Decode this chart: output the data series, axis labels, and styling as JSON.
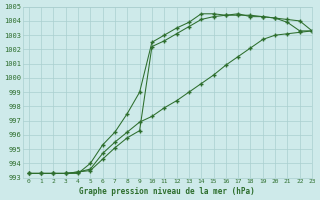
{
  "title": "Graphe pression niveau de la mer (hPa)",
  "bg_color": "#ceeaea",
  "grid_color": "#aacfcf",
  "line_color": "#2d6e2d",
  "xlim": [
    -0.5,
    23
  ],
  "ylim": [
    993,
    1005
  ],
  "xticks": [
    0,
    1,
    2,
    3,
    4,
    5,
    6,
    7,
    8,
    9,
    10,
    11,
    12,
    13,
    14,
    15,
    16,
    17,
    18,
    19,
    20,
    21,
    22,
    23
  ],
  "yticks": [
    993,
    994,
    995,
    996,
    997,
    998,
    999,
    1000,
    1001,
    1002,
    1003,
    1004,
    1005
  ],
  "line1_x": [
    0,
    1,
    2,
    3,
    4,
    5,
    6,
    7,
    8,
    9,
    10,
    11,
    12,
    13,
    14,
    15,
    16,
    17,
    18,
    19,
    20,
    21,
    22,
    23
  ],
  "line1_y": [
    993.3,
    993.3,
    993.3,
    993.3,
    993.3,
    994.0,
    995.3,
    996.2,
    997.5,
    999.0,
    1002.5,
    1003.0,
    1003.5,
    1003.9,
    1004.5,
    1004.5,
    1004.4,
    1004.4,
    1004.4,
    1004.3,
    1004.2,
    1004.1,
    1004.0,
    1003.3
  ],
  "line2_x": [
    0,
    1,
    2,
    3,
    4,
    5,
    6,
    7,
    8,
    9,
    10,
    11,
    12,
    13,
    14,
    15,
    16,
    17,
    18,
    19,
    20,
    21,
    22,
    23
  ],
  "line2_y": [
    993.3,
    993.3,
    993.3,
    993.3,
    993.4,
    993.6,
    994.7,
    995.5,
    996.2,
    996.9,
    997.3,
    997.9,
    998.4,
    999.0,
    999.6,
    1000.2,
    1000.9,
    1001.5,
    1002.1,
    1002.7,
    1003.0,
    1003.1,
    1003.2,
    1003.3
  ],
  "line3_x": [
    0,
    1,
    2,
    3,
    4,
    5,
    6,
    7,
    8,
    9,
    10,
    11,
    12,
    13,
    14,
    15,
    16,
    17,
    18,
    19,
    20,
    21,
    22,
    23
  ],
  "line3_y": [
    993.3,
    993.3,
    993.3,
    993.3,
    993.4,
    993.5,
    994.3,
    995.1,
    995.8,
    996.3,
    1002.2,
    1002.6,
    1003.1,
    1003.6,
    1004.1,
    1004.3,
    1004.4,
    1004.5,
    1004.3,
    1004.3,
    1004.2,
    1003.9,
    1003.3,
    1003.3
  ]
}
